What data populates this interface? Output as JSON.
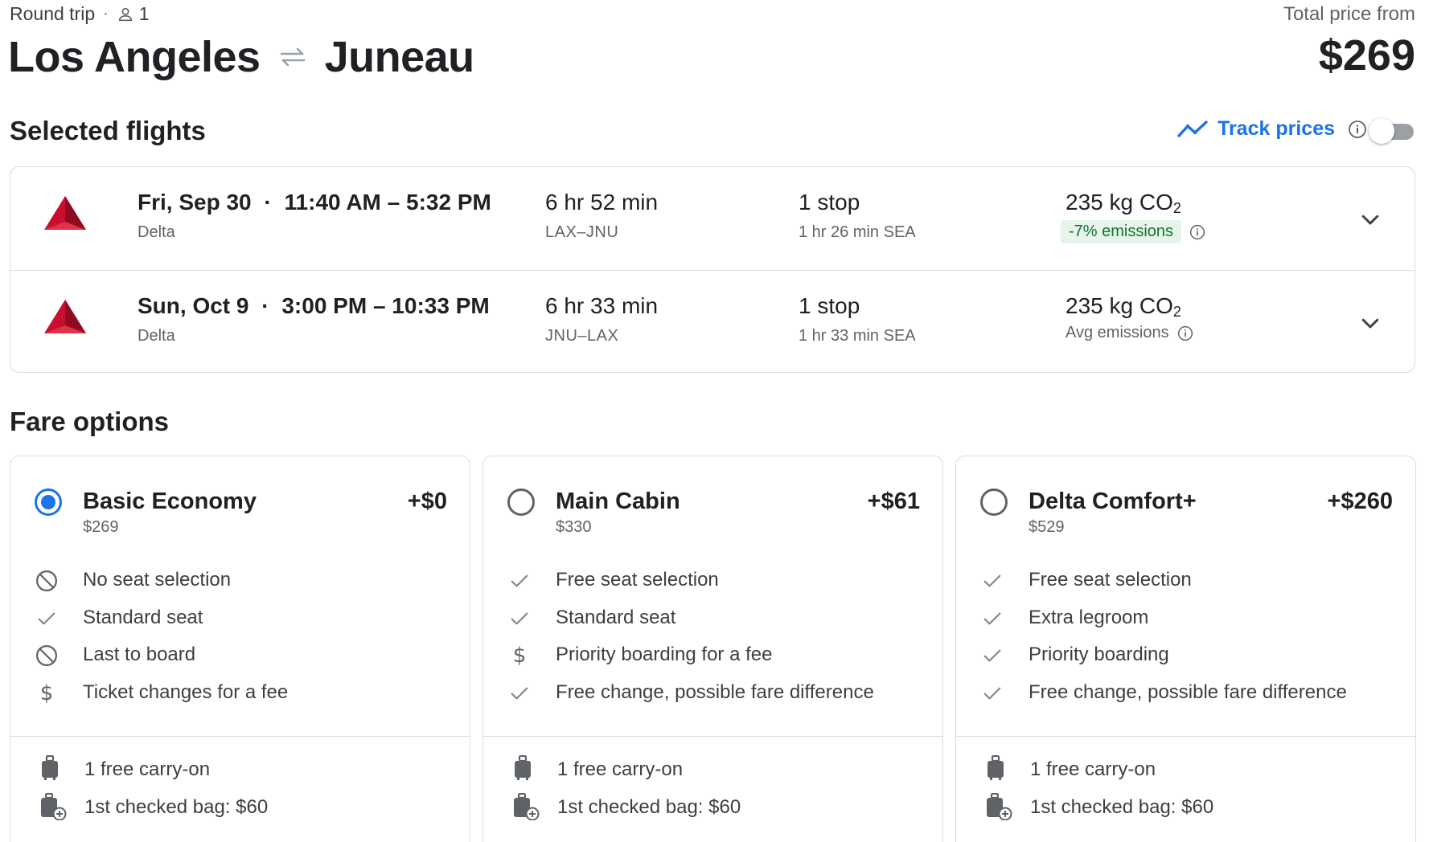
{
  "header": {
    "trip_type": "Round trip",
    "passengers": "1",
    "origin": "Los Angeles",
    "destination": "Juneau",
    "total_price_label": "Total price from",
    "total_price": "$269"
  },
  "selected_flights": {
    "title": "Selected flights",
    "track_prices_label": "Track prices",
    "track_prices_enabled": false,
    "flights": [
      {
        "date": "Fri, Sep 30",
        "times": "11:40 AM – 5:32 PM",
        "airline": "Delta",
        "duration": "6 hr 52 min",
        "route": "LAX–JNU",
        "stops": "1 stop",
        "layover": "1 hr 26 min SEA",
        "co2": "235 kg CO",
        "co2_sub": "2",
        "emissions": "-7% emissions"
      },
      {
        "date": "Sun, Oct 9",
        "times": "3:00 PM – 10:33 PM",
        "airline": "Delta",
        "duration": "6 hr 33 min",
        "route": "JNU–LAX",
        "stops": "1 stop",
        "layover": "1 hr 33 min SEA",
        "co2": "235 kg CO",
        "co2_sub": "2",
        "emissions": "Avg emissions"
      }
    ]
  },
  "fare_options": {
    "title": "Fare options",
    "cards": [
      {
        "name": "Basic Economy",
        "price": "$269",
        "add": "+$0",
        "selected": true,
        "features": [
          {
            "icon": "block-icon",
            "text": "No seat selection"
          },
          {
            "icon": "check-icon",
            "text": "Standard seat"
          },
          {
            "icon": "block-icon",
            "text": "Last to board"
          },
          {
            "icon": "dollar-icon",
            "text": "Ticket changes for a fee"
          }
        ],
        "bags": [
          {
            "icon": "carry-on-icon",
            "text": "1 free carry-on"
          },
          {
            "icon": "checked-bag-icon",
            "text": "1st checked bag: $60"
          }
        ]
      },
      {
        "name": "Main Cabin",
        "price": "$330",
        "add": "+$61",
        "selected": false,
        "features": [
          {
            "icon": "check-icon",
            "text": "Free seat selection"
          },
          {
            "icon": "check-icon",
            "text": "Standard seat"
          },
          {
            "icon": "dollar-icon",
            "text": "Priority boarding for a fee"
          },
          {
            "icon": "check-icon",
            "text": "Free change, possible fare difference"
          }
        ],
        "bags": [
          {
            "icon": "carry-on-icon",
            "text": "1 free carry-on"
          },
          {
            "icon": "checked-bag-icon",
            "text": "1st checked bag: $60"
          }
        ]
      },
      {
        "name": "Delta Comfort+",
        "price": "$529",
        "add": "+$260",
        "selected": false,
        "features": [
          {
            "icon": "check-icon",
            "text": "Free seat selection"
          },
          {
            "icon": "check-icon",
            "text": "Extra legroom"
          },
          {
            "icon": "check-icon",
            "text": "Priority boarding"
          },
          {
            "icon": "check-icon",
            "text": "Free change, possible fare difference"
          }
        ],
        "bags": [
          {
            "icon": "carry-on-icon",
            "text": "1 free carry-on"
          },
          {
            "icon": "checked-bag-icon",
            "text": "1st checked bag: $60"
          }
        ]
      }
    ]
  },
  "colors": {
    "accent": "#1a73e8",
    "delta_red": "#c8102e",
    "badge_bg": "#e6f4ea",
    "badge_text": "#137333"
  }
}
